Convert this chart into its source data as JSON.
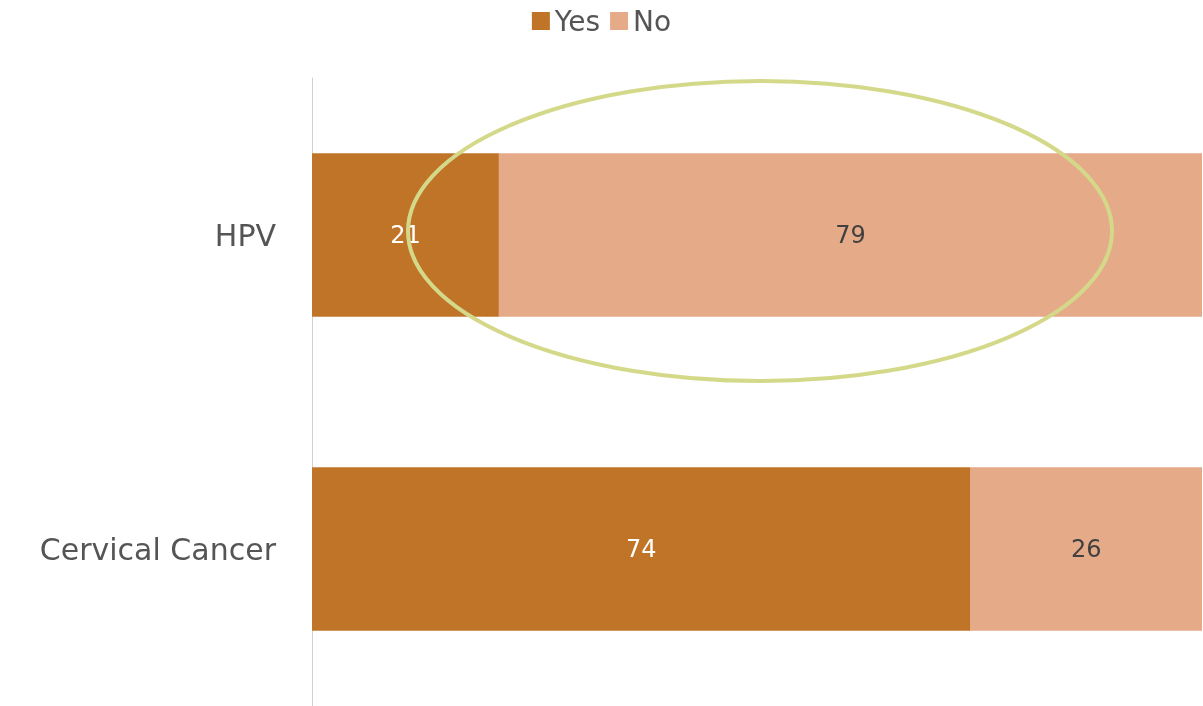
{
  "chart_data": {
    "type": "bar",
    "orientation": "horizontal",
    "stacked": true,
    "categories": [
      "HPV",
      "Cervical Cancer"
    ],
    "series": [
      {
        "name": "Yes",
        "color": "#c07428",
        "values": [
          21,
          74
        ]
      },
      {
        "name": "No",
        "color": "#e5aa88",
        "values": [
          79,
          26
        ]
      }
    ],
    "xlim": [
      0,
      100
    ],
    "tick_labels": "y",
    "data_labels": true,
    "legend": "top"
  }
}
